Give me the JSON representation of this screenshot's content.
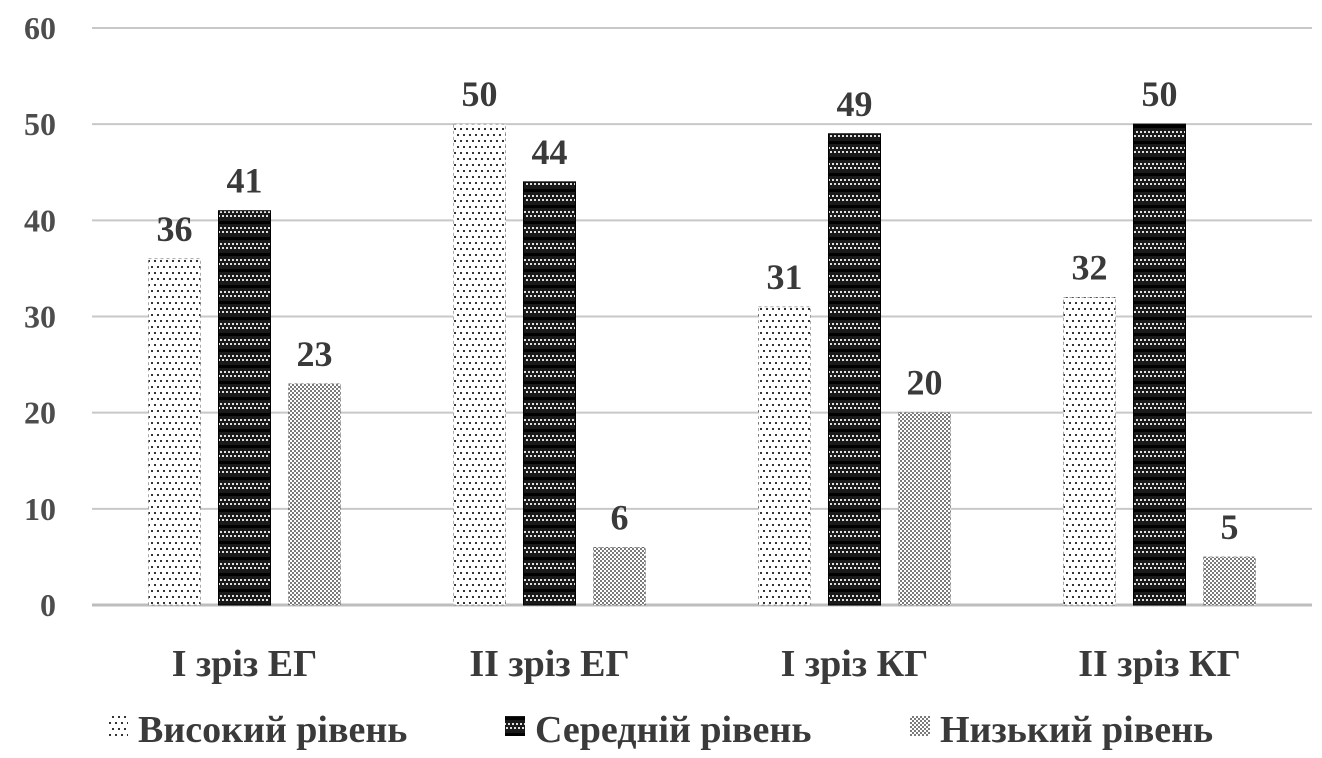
{
  "chart_data": {
    "type": "bar",
    "categories": [
      "I зріз ЕГ",
      "II зріз ЕГ",
      "I зріз КГ",
      "II зріз КГ"
    ],
    "series": [
      {
        "name": "Високий рівень",
        "values": [
          36,
          50,
          31,
          32
        ],
        "pattern": "dots"
      },
      {
        "name": "Середній рівень",
        "values": [
          41,
          44,
          49,
          50
        ],
        "pattern": "dense"
      },
      {
        "name": "Низький рівень",
        "values": [
          23,
          6,
          20,
          5
        ],
        "pattern": "stipple"
      }
    ],
    "ylim": [
      0,
      60
    ],
    "yticks": [
      0,
      10,
      20,
      30,
      40,
      50,
      60
    ],
    "grid": true,
    "legend_position": "bottom",
    "colors": {
      "grid": "#c8c8c8",
      "axis": "#bdbdbd",
      "text": "#3a3a3a",
      "dark": "#111111"
    }
  }
}
